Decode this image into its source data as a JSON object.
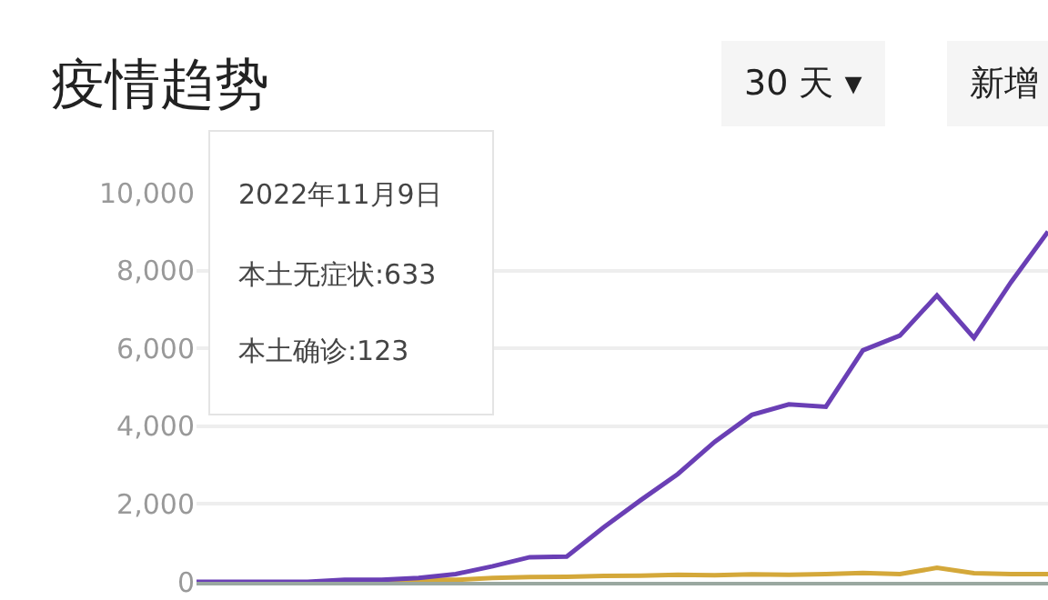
{
  "chart_data": {
    "type": "line",
    "title": "疫情趋势",
    "categories": [
      null,
      null,
      null,
      null,
      null,
      null,
      null,
      null,
      null,
      null,
      null,
      null,
      null,
      null,
      null,
      null,
      null,
      null,
      null,
      null,
      null,
      null,
      null,
      null
    ],
    "series": [
      {
        "color": "#6a3fb5",
        "values": [
          0,
          0,
          0,
          0,
          50,
          50,
          100,
          200,
          400,
          633,
          650,
          1400,
          2100,
          2770,
          3600,
          4290,
          4560,
          4500,
          5950,
          6330,
          7360,
          6270,
          7700,
          9000
        ]
      },
      {
        "color": "#d4a83a",
        "values": [
          null,
          null,
          null,
          null,
          0,
          0,
          50,
          50,
          100,
          123,
          130,
          150,
          160,
          180,
          170,
          190,
          180,
          200,
          230,
          200,
          360,
          220,
          200,
          200
        ]
      }
    ],
    "ylim": [
      0,
      10000
    ],
    "yticks": [
      {
        "value": 0,
        "label": "0"
      },
      {
        "value": 2000,
        "label": "2,000"
      },
      {
        "value": 4000,
        "label": "4,000"
      },
      {
        "value": 6000,
        "label": "6,000"
      },
      {
        "value": 8000,
        "label": "8,000"
      },
      {
        "value": 10000,
        "label": "10,000"
      }
    ],
    "tick_labels": "y",
    "grid": "y",
    "annotations": [
      "2022年11月9日",
      "本土无症状:633",
      "本土确诊:123",
      "30 天 ▾",
      "新增"
    ]
  }
}
